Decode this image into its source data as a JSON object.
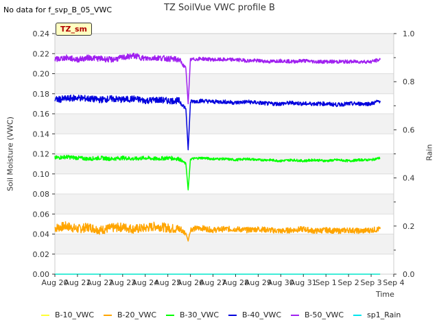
{
  "header": {
    "nodata_text": "No data for f_svp_B_05_VWC",
    "badge": "TZ_sm"
  },
  "chart_data": {
    "type": "line",
    "title": "TZ SoilVue VWC profile B",
    "xlabel": "Time",
    "ylabel": "Soil Moisture (VWC)",
    "y2label": "Rain",
    "ylim": [
      0.0,
      0.24
    ],
    "y2lim": [
      0.0,
      1.0
    ],
    "yticks": [
      "0.00",
      "0.02",
      "0.04",
      "0.06",
      "0.08",
      "0.10",
      "0.12",
      "0.14",
      "0.16",
      "0.18",
      "0.20",
      "0.22",
      "0.24"
    ],
    "y2ticks": [
      "0.0",
      "0.2",
      "0.4",
      "0.6",
      "0.8",
      "1.0"
    ],
    "x_range_days": [
      0,
      15
    ],
    "xticks": [
      "Aug 20",
      "Aug 21",
      "Aug 22",
      "Aug 23",
      "Aug 24",
      "Aug 25",
      "Aug 26",
      "Aug 27",
      "Aug 28",
      "Aug 29",
      "Aug 30",
      "Aug 31",
      "Sep 1",
      "Sep 2",
      "Sep 3",
      "Sep 4"
    ],
    "grid": true,
    "legend_position": "bottom",
    "series": [
      {
        "name": "B-10_VWC",
        "color": "#ffff33",
        "axis": "left",
        "points": [
          [
            0,
            0.0
          ],
          [
            14.4,
            0.0
          ]
        ]
      },
      {
        "name": "B-20_VWC",
        "color": "#ffa500",
        "axis": "left",
        "points": [
          [
            0,
            0.046
          ],
          [
            0.5,
            0.048
          ],
          [
            1,
            0.045
          ],
          [
            1.5,
            0.047
          ],
          [
            2,
            0.044
          ],
          [
            2.5,
            0.046
          ],
          [
            3,
            0.047
          ],
          [
            3.5,
            0.045
          ],
          [
            4,
            0.046
          ],
          [
            4.5,
            0.048
          ],
          [
            5,
            0.046
          ],
          [
            5.5,
            0.045
          ],
          [
            5.8,
            0.041
          ],
          [
            5.9,
            0.033
          ],
          [
            6.0,
            0.045
          ],
          [
            6.5,
            0.046
          ],
          [
            7,
            0.044
          ],
          [
            7.5,
            0.045
          ],
          [
            8,
            0.045
          ],
          [
            8.5,
            0.044
          ],
          [
            9,
            0.045
          ],
          [
            9.5,
            0.044
          ],
          [
            10,
            0.043
          ],
          [
            10.5,
            0.044
          ],
          [
            11,
            0.045
          ],
          [
            11.5,
            0.043
          ],
          [
            12,
            0.044
          ],
          [
            12.5,
            0.043
          ],
          [
            13,
            0.044
          ],
          [
            13.5,
            0.043
          ],
          [
            14,
            0.044
          ],
          [
            14.4,
            0.045
          ]
        ]
      },
      {
        "name": "B-30_VWC",
        "color": "#00ff00",
        "axis": "left",
        "points": [
          [
            0,
            0.116
          ],
          [
            0.5,
            0.117
          ],
          [
            1,
            0.116
          ],
          [
            1.5,
            0.115
          ],
          [
            2,
            0.116
          ],
          [
            2.5,
            0.115
          ],
          [
            3,
            0.116
          ],
          [
            3.5,
            0.115
          ],
          [
            4,
            0.116
          ],
          [
            4.5,
            0.115
          ],
          [
            5,
            0.116
          ],
          [
            5.5,
            0.115
          ],
          [
            5.8,
            0.11
          ],
          [
            5.9,
            0.084
          ],
          [
            6.0,
            0.115
          ],
          [
            6.5,
            0.116
          ],
          [
            7,
            0.115
          ],
          [
            7.5,
            0.115
          ],
          [
            8,
            0.114
          ],
          [
            8.5,
            0.115
          ],
          [
            9,
            0.114
          ],
          [
            9.5,
            0.114
          ],
          [
            10,
            0.113
          ],
          [
            10.5,
            0.114
          ],
          [
            11,
            0.113
          ],
          [
            11.5,
            0.114
          ],
          [
            12,
            0.113
          ],
          [
            12.5,
            0.114
          ],
          [
            13,
            0.113
          ],
          [
            13.5,
            0.114
          ],
          [
            14,
            0.114
          ],
          [
            14.4,
            0.116
          ]
        ]
      },
      {
        "name": "B-40_VWC",
        "color": "#0000dd",
        "axis": "left",
        "points": [
          [
            0,
            0.174
          ],
          [
            0.5,
            0.175
          ],
          [
            1,
            0.176
          ],
          [
            1.5,
            0.175
          ],
          [
            2,
            0.174
          ],
          [
            2.5,
            0.175
          ],
          [
            3,
            0.174
          ],
          [
            3.5,
            0.175
          ],
          [
            4,
            0.173
          ],
          [
            4.5,
            0.174
          ],
          [
            5,
            0.173
          ],
          [
            5.5,
            0.173
          ],
          [
            5.8,
            0.165
          ],
          [
            5.9,
            0.124
          ],
          [
            6.0,
            0.172
          ],
          [
            6.5,
            0.173
          ],
          [
            7,
            0.172
          ],
          [
            7.5,
            0.172
          ],
          [
            8,
            0.171
          ],
          [
            8.5,
            0.172
          ],
          [
            9,
            0.171
          ],
          [
            9.5,
            0.17
          ],
          [
            10,
            0.17
          ],
          [
            10.5,
            0.171
          ],
          [
            11,
            0.17
          ],
          [
            11.5,
            0.17
          ],
          [
            12,
            0.17
          ],
          [
            12.5,
            0.169
          ],
          [
            13,
            0.17
          ],
          [
            13.5,
            0.17
          ],
          [
            14,
            0.17
          ],
          [
            14.4,
            0.173
          ]
        ]
      },
      {
        "name": "B-50_VWC",
        "color": "#a020f0",
        "axis": "left",
        "points": [
          [
            0,
            0.214
          ],
          [
            0.5,
            0.216
          ],
          [
            1,
            0.214
          ],
          [
            1.5,
            0.216
          ],
          [
            2,
            0.215
          ],
          [
            2.5,
            0.214
          ],
          [
            3,
            0.216
          ],
          [
            3.5,
            0.218
          ],
          [
            4,
            0.215
          ],
          [
            4.5,
            0.216
          ],
          [
            5,
            0.215
          ],
          [
            5.5,
            0.214
          ],
          [
            5.8,
            0.205
          ],
          [
            5.9,
            0.17
          ],
          [
            6.0,
            0.214
          ],
          [
            6.5,
            0.215
          ],
          [
            7,
            0.214
          ],
          [
            7.5,
            0.214
          ],
          [
            8,
            0.214
          ],
          [
            8.5,
            0.213
          ],
          [
            9,
            0.213
          ],
          [
            9.5,
            0.212
          ],
          [
            10,
            0.213
          ],
          [
            10.5,
            0.212
          ],
          [
            11,
            0.213
          ],
          [
            11.5,
            0.212
          ],
          [
            12,
            0.212
          ],
          [
            12.5,
            0.212
          ],
          [
            13,
            0.212
          ],
          [
            13.5,
            0.212
          ],
          [
            14,
            0.212
          ],
          [
            14.4,
            0.214
          ]
        ]
      },
      {
        "name": "sp1_Rain",
        "color": "#00e5ee",
        "axis": "right",
        "points": [
          [
            0,
            0.0
          ],
          [
            14.4,
            0.0
          ]
        ]
      }
    ]
  }
}
